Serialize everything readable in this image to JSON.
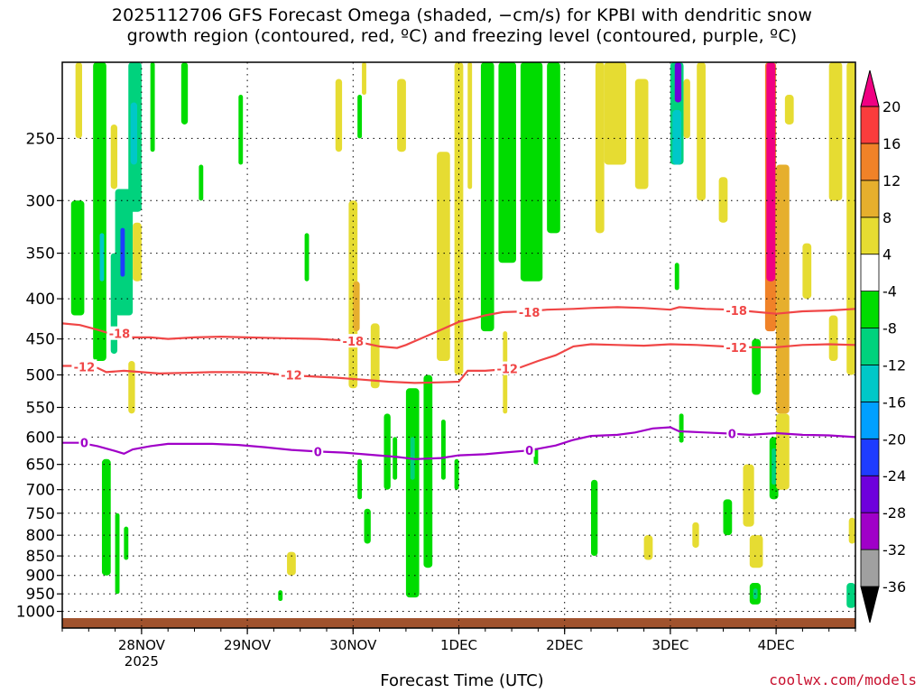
{
  "title": "2025112706 GFS Forecast Omega (shaded, −cm/s) for KPBI with dendritic snow\ngrowth region (contoured, red, ºC) and freezing level (contoured, purple, ºC)",
  "credit": "coolwx.com/models",
  "chart_data": {
    "type": "heatmap",
    "title": "2025112706 GFS Forecast Omega (shaded, −cm/s) for KPBI with dendritic snow growth region (contoured, red, ºC) and freezing level (contoured, purple, ºC)",
    "xlabel": "Forecast Time (UTC)",
    "ylabel": "",
    "x_ticks": [
      {
        "t": 18,
        "label": "28NOV",
        "sublabel": "2025"
      },
      {
        "t": 42,
        "label": "29NOV",
        "sublabel": ""
      },
      {
        "t": 66,
        "label": "30NOV",
        "sublabel": ""
      },
      {
        "t": 90,
        "label": "1DEC",
        "sublabel": ""
      },
      {
        "t": 114,
        "label": "2DEC",
        "sublabel": ""
      },
      {
        "t": 138,
        "label": "3DEC",
        "sublabel": ""
      },
      {
        "t": 162,
        "label": "4DEC",
        "sublabel": ""
      }
    ],
    "xlim": [
      0,
      180
    ],
    "y_scale": "log",
    "ylim": [
      1050,
      200
    ],
    "y_ticks": [
      250,
      300,
      350,
      400,
      450,
      500,
      550,
      600,
      650,
      700,
      750,
      800,
      850,
      900,
      950,
      1000
    ],
    "grid": true,
    "colorbar": {
      "levels": [
        -36,
        -32,
        -28,
        -24,
        -20,
        -16,
        -12,
        -8,
        -4,
        4,
        8,
        12,
        16,
        20
      ],
      "labels": [
        "-36",
        "-32",
        "-28",
        "-24",
        "-20",
        "-16",
        "-12",
        "-8",
        "-4",
        "4",
        "8",
        "12",
        "16",
        "20"
      ],
      "colors": [
        "#000000",
        "#a0a0a0",
        "#a000c8",
        "#6e00dc",
        "#1e3cff",
        "#00a0ff",
        "#00c8c8",
        "#00d27d",
        "#00dc00",
        "#ffffff",
        "#e6dc32",
        "#e6af2d",
        "#f08228",
        "#fa3c3c",
        "#f00082"
      ],
      "extend": "both"
    },
    "omega_regions": [
      {
        "t0": 2,
        "t1": 5,
        "p0": 300,
        "p1": 420,
        "v": -6
      },
      {
        "t0": 7,
        "t1": 10,
        "p0": 200,
        "p1": 480,
        "v": -6
      },
      {
        "t0": 8.5,
        "t1": 9.5,
        "p0": 330,
        "p1": 380,
        "v": -14
      },
      {
        "t0": 9,
        "t1": 11,
        "p0": 640,
        "p1": 900,
        "v": -6
      },
      {
        "t0": 11,
        "t1": 12.5,
        "p0": 350,
        "p1": 470,
        "v": -10
      },
      {
        "t0": 12,
        "t1": 16,
        "p0": 290,
        "p1": 420,
        "v": -10
      },
      {
        "t0": 13.2,
        "t1": 14.2,
        "p0": 325,
        "p1": 375,
        "v": -24
      },
      {
        "t0": 15,
        "t1": 18,
        "p0": 200,
        "p1": 310,
        "v": -10
      },
      {
        "t0": 15.5,
        "t1": 17,
        "p0": 225,
        "p1": 270,
        "v": -14
      },
      {
        "t0": 12,
        "t1": 13,
        "p0": 750,
        "p1": 950,
        "v": -6
      },
      {
        "t0": 14,
        "t1": 15,
        "p0": 780,
        "p1": 860,
        "v": -6
      },
      {
        "t0": 20,
        "t1": 21,
        "p0": 200,
        "p1": 260,
        "v": -6
      },
      {
        "t0": 31,
        "t1": 32,
        "p0": 270,
        "p1": 300,
        "v": -6
      },
      {
        "t0": 27,
        "t1": 28.5,
        "p0": 200,
        "p1": 240,
        "v": -6
      },
      {
        "t0": 40,
        "t1": 41,
        "p0": 220,
        "p1": 270,
        "v": -6
      },
      {
        "t0": 55,
        "t1": 56,
        "p0": 330,
        "p1": 380,
        "v": -6
      },
      {
        "t0": 49,
        "t1": 50,
        "p0": 940,
        "p1": 970,
        "v": -6
      },
      {
        "t0": 67,
        "t1": 68,
        "p0": 220,
        "p1": 250,
        "v": -6
      },
      {
        "t0": 67,
        "t1": 68,
        "p0": 640,
        "p1": 720,
        "v": -6
      },
      {
        "t0": 68.5,
        "t1": 70,
        "p0": 740,
        "p1": 820,
        "v": -6
      },
      {
        "t0": 73,
        "t1": 74.5,
        "p0": 560,
        "p1": 700,
        "v": -6
      },
      {
        "t0": 75,
        "t1": 76,
        "p0": 600,
        "p1": 680,
        "v": -6
      },
      {
        "t0": 78,
        "t1": 81,
        "p0": 520,
        "p1": 960,
        "v": -6
      },
      {
        "t0": 79,
        "t1": 80,
        "p0": 600,
        "p1": 680,
        "v": -10
      },
      {
        "t0": 82,
        "t1": 84,
        "p0": 500,
        "p1": 880,
        "v": -6
      },
      {
        "t0": 86,
        "t1": 87,
        "p0": 570,
        "p1": 680,
        "v": -6
      },
      {
        "t0": 89,
        "t1": 90,
        "p0": 640,
        "p1": 700,
        "v": -6
      },
      {
        "t0": 95,
        "t1": 98,
        "p0": 200,
        "p1": 440,
        "v": -6
      },
      {
        "t0": 99,
        "t1": 103,
        "p0": 200,
        "p1": 360,
        "v": -6
      },
      {
        "t0": 104,
        "t1": 109,
        "p0": 200,
        "p1": 380,
        "v": -6
      },
      {
        "t0": 110,
        "t1": 113,
        "p0": 200,
        "p1": 330,
        "v": -6
      },
      {
        "t0": 107,
        "t1": 108,
        "p0": 620,
        "p1": 650,
        "v": -6
      },
      {
        "t0": 120,
        "t1": 121.5,
        "p0": 680,
        "p1": 850,
        "v": -6
      },
      {
        "t0": 138,
        "t1": 141,
        "p0": 200,
        "p1": 270,
        "v": -10
      },
      {
        "t0": 138.5,
        "t1": 140.5,
        "p0": 230,
        "p1": 270,
        "v": -16
      },
      {
        "t0": 139,
        "t1": 140.5,
        "p0": 200,
        "p1": 225,
        "v": -28
      },
      {
        "t0": 139,
        "t1": 140,
        "p0": 360,
        "p1": 390,
        "v": -6
      },
      {
        "t0": 140,
        "t1": 141,
        "p0": 560,
        "p1": 610,
        "v": -6
      },
      {
        "t0": 150,
        "t1": 152,
        "p0": 720,
        "p1": 800,
        "v": -6
      },
      {
        "t0": 156.5,
        "t1": 158.5,
        "p0": 450,
        "p1": 530,
        "v": -6
      },
      {
        "t0": 160.5,
        "t1": 162.5,
        "p0": 600,
        "p1": 720,
        "v": -6
      },
      {
        "t0": 161,
        "t1": 162,
        "p0": 620,
        "p1": 690,
        "v": -12
      },
      {
        "t0": 156,
        "t1": 158.5,
        "p0": 920,
        "p1": 980,
        "v": -6
      },
      {
        "t0": 156.8,
        "t1": 157.8,
        "p0": 935,
        "p1": 965,
        "v": -10
      },
      {
        "t0": 178,
        "t1": 180,
        "p0": 920,
        "p1": 990,
        "v": -10
      },
      {
        "t0": 3,
        "t1": 4.5,
        "p0": 200,
        "p1": 250,
        "v": 5
      },
      {
        "t0": 11,
        "t1": 12.5,
        "p0": 240,
        "p1": 290,
        "v": 5
      },
      {
        "t0": 16,
        "t1": 18,
        "p0": 320,
        "p1": 380,
        "v": 5
      },
      {
        "t0": 15,
        "t1": 16.5,
        "p0": 480,
        "p1": 560,
        "v": 5
      },
      {
        "t0": 51,
        "t1": 53,
        "p0": 840,
        "p1": 900,
        "v": 5
      },
      {
        "t0": 65,
        "t1": 67,
        "p0": 300,
        "p1": 520,
        "v": 5
      },
      {
        "t0": 66,
        "t1": 67.5,
        "p0": 380,
        "p1": 440,
        "v": 10
      },
      {
        "t0": 62,
        "t1": 63.5,
        "p0": 210,
        "p1": 260,
        "v": 5
      },
      {
        "t0": 68,
        "t1": 69,
        "p0": 200,
        "p1": 220,
        "v": 5
      },
      {
        "t0": 70,
        "t1": 72,
        "p0": 430,
        "p1": 520,
        "v": 5
      },
      {
        "t0": 76,
        "t1": 78,
        "p0": 210,
        "p1": 260,
        "v": 5
      },
      {
        "t0": 85,
        "t1": 88,
        "p0": 260,
        "p1": 480,
        "v": 5
      },
      {
        "t0": 89,
        "t1": 91,
        "p0": 200,
        "p1": 500,
        "v": 5
      },
      {
        "t0": 92,
        "t1": 93,
        "p0": 200,
        "p1": 290,
        "v": 5
      },
      {
        "t0": 100,
        "t1": 101,
        "p0": 440,
        "p1": 560,
        "v": 5
      },
      {
        "t0": 121,
        "t1": 123,
        "p0": 200,
        "p1": 330,
        "v": 5
      },
      {
        "t0": 123,
        "t1": 128,
        "p0": 200,
        "p1": 270,
        "v": 5
      },
      {
        "t0": 130,
        "t1": 133,
        "p0": 210,
        "p1": 290,
        "v": 5
      },
      {
        "t0": 132,
        "t1": 134,
        "p0": 800,
        "p1": 860,
        "v": 5
      },
      {
        "t0": 141,
        "t1": 142.5,
        "p0": 210,
        "p1": 250,
        "v": 5
      },
      {
        "t0": 144,
        "t1": 146,
        "p0": 200,
        "p1": 300,
        "v": 5
      },
      {
        "t0": 149,
        "t1": 151,
        "p0": 280,
        "p1": 320,
        "v": 5
      },
      {
        "t0": 143,
        "t1": 144.5,
        "p0": 770,
        "p1": 830,
        "v": 5
      },
      {
        "t0": 154.5,
        "t1": 157,
        "p0": 650,
        "p1": 780,
        "v": 5
      },
      {
        "t0": 156,
        "t1": 159,
        "p0": 800,
        "p1": 880,
        "v": 5
      },
      {
        "t0": 162,
        "t1": 165,
        "p0": 270,
        "p1": 560,
        "v": 8
      },
      {
        "t0": 162,
        "t1": 165,
        "p0": 560,
        "p1": 700,
        "v": 5
      },
      {
        "t0": 164,
        "t1": 166,
        "p0": 220,
        "p1": 240,
        "v": 5
      },
      {
        "t0": 168,
        "t1": 170,
        "p0": 340,
        "p1": 400,
        "v": 5
      },
      {
        "t0": 174,
        "t1": 177,
        "p0": 200,
        "p1": 300,
        "v": 5
      },
      {
        "t0": 174,
        "t1": 176,
        "p0": 420,
        "p1": 480,
        "v": 5
      },
      {
        "t0": 178,
        "t1": 180,
        "p0": 200,
        "p1": 500,
        "v": 5
      },
      {
        "t0": 178.5,
        "t1": 180,
        "p0": 760,
        "p1": 820,
        "v": 5
      },
      {
        "t0": 159.5,
        "t1": 162,
        "p0": 200,
        "p1": 440,
        "v": 14
      },
      {
        "t0": 159.8,
        "t1": 161.8,
        "p0": 200,
        "p1": 380,
        "v": 22
      }
    ],
    "contours": [
      {
        "value": -18,
        "label": "-18",
        "color": "#f04646",
        "points": [
          [
            0,
            430
          ],
          [
            4,
            432
          ],
          [
            8,
            438
          ],
          [
            12,
            445
          ],
          [
            16,
            448
          ],
          [
            20,
            448
          ],
          [
            24,
            450
          ],
          [
            30,
            448
          ],
          [
            36,
            447
          ],
          [
            42,
            448
          ],
          [
            50,
            449
          ],
          [
            58,
            450
          ],
          [
            64,
            452
          ],
          [
            68,
            455
          ],
          [
            72,
            460
          ],
          [
            76,
            462
          ],
          [
            78,
            458
          ],
          [
            82,
            448
          ],
          [
            86,
            438
          ],
          [
            90,
            428
          ],
          [
            94,
            423
          ],
          [
            96,
            420
          ],
          [
            100,
            416
          ],
          [
            106,
            415
          ],
          [
            110,
            413
          ],
          [
            116,
            412
          ],
          [
            120,
            411
          ],
          [
            126,
            410
          ],
          [
            132,
            411
          ],
          [
            138,
            413
          ],
          [
            140,
            410
          ],
          [
            146,
            412
          ],
          [
            152,
            413
          ],
          [
            156,
            415
          ],
          [
            162,
            418
          ],
          [
            168,
            415
          ],
          [
            174,
            414
          ],
          [
            180,
            412
          ]
        ],
        "labels": [
          [
            13,
            443
          ],
          [
            66,
            453
          ],
          [
            106,
            416
          ],
          [
            153,
            414
          ]
        ]
      },
      {
        "value": -12,
        "label": "-12",
        "color": "#f04646",
        "points": [
          [
            0,
            487
          ],
          [
            4,
            487
          ],
          [
            8,
            490
          ],
          [
            10,
            496
          ],
          [
            14,
            494
          ],
          [
            18,
            496
          ],
          [
            22,
            498
          ],
          [
            28,
            497
          ],
          [
            34,
            496
          ],
          [
            40,
            496
          ],
          [
            46,
            497
          ],
          [
            50,
            500
          ],
          [
            56,
            502
          ],
          [
            62,
            504
          ],
          [
            68,
            507
          ],
          [
            74,
            510
          ],
          [
            80,
            512
          ],
          [
            86,
            511
          ],
          [
            90,
            510
          ],
          [
            92,
            494
          ],
          [
            96,
            494
          ],
          [
            100,
            492
          ],
          [
            104,
            489
          ],
          [
            108,
            480
          ],
          [
            112,
            472
          ],
          [
            116,
            460
          ],
          [
            120,
            457
          ],
          [
            126,
            458
          ],
          [
            132,
            459
          ],
          [
            138,
            457
          ],
          [
            144,
            458
          ],
          [
            150,
            460
          ],
          [
            156,
            461
          ],
          [
            162,
            461
          ],
          [
            168,
            458
          ],
          [
            174,
            457
          ],
          [
            180,
            458
          ]
        ],
        "labels": [
          [
            5,
            488
          ],
          [
            52,
            500
          ],
          [
            101,
            491
          ],
          [
            153,
            461
          ]
        ]
      },
      {
        "value": 0,
        "label": "0",
        "color": "#a000c8",
        "points": [
          [
            0,
            610
          ],
          [
            4,
            610
          ],
          [
            8,
            616
          ],
          [
            12,
            625
          ],
          [
            14,
            630
          ],
          [
            16,
            622
          ],
          [
            20,
            616
          ],
          [
            24,
            612
          ],
          [
            28,
            612
          ],
          [
            34,
            612
          ],
          [
            40,
            614
          ],
          [
            46,
            618
          ],
          [
            52,
            623
          ],
          [
            58,
            626
          ],
          [
            64,
            628
          ],
          [
            70,
            632
          ],
          [
            76,
            636
          ],
          [
            80,
            640
          ],
          [
            86,
            638
          ],
          [
            90,
            633
          ],
          [
            96,
            631
          ],
          [
            100,
            628
          ],
          [
            106,
            624
          ],
          [
            112,
            615
          ],
          [
            116,
            605
          ],
          [
            120,
            598
          ],
          [
            126,
            596
          ],
          [
            130,
            592
          ],
          [
            134,
            585
          ],
          [
            138,
            583
          ],
          [
            140,
            590
          ],
          [
            146,
            592
          ],
          [
            152,
            594
          ],
          [
            156,
            596
          ],
          [
            162,
            593
          ],
          [
            168,
            596
          ],
          [
            174,
            597
          ],
          [
            180,
            600
          ]
        ],
        "labels": [
          [
            5,
            610
          ],
          [
            58,
            626
          ],
          [
            106,
            624
          ],
          [
            152,
            594
          ]
        ]
      }
    ],
    "ground": {
      "p_top": 1020,
      "color": "#a0522d"
    }
  }
}
